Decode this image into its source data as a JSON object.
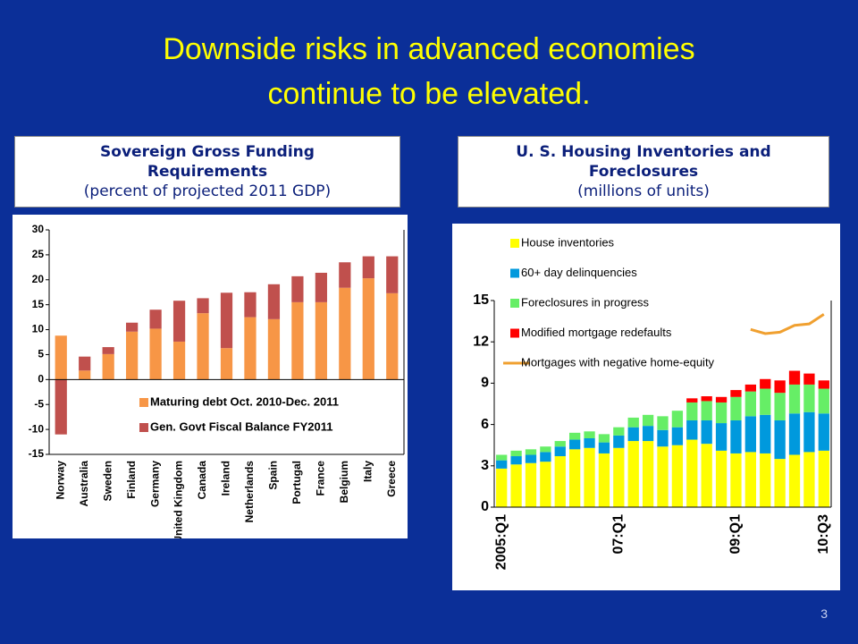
{
  "slide": {
    "title": "Downside risks in advanced economies continue to be elevated.",
    "page_number": "3"
  },
  "chart_data": [
    {
      "type": "bar",
      "stacked": true,
      "title": "Sovereign Gross Funding Requirements",
      "subtitle": "(percent of projected 2011 GDP)",
      "categories": [
        "Norway",
        "Australia",
        "Sweden",
        "Finland",
        "Germany",
        "United Kingdom",
        "Canada",
        "Ireland",
        "Netherlands",
        "Spain",
        "Portugal",
        "France",
        "Belgium",
        "Italy",
        "Greece"
      ],
      "series": [
        {
          "name": "Maturing debt Oct. 2010-Dec. 2011",
          "color": "#f79646",
          "values": [
            8.8,
            1.8,
            5.1,
            9.6,
            10.2,
            7.6,
            13.3,
            6.3,
            12.5,
            12.1,
            15.5,
            15.5,
            18.4,
            20.3,
            17.3
          ]
        },
        {
          "name": "Gen. Govt Fiscal Balance FY2011",
          "color": "#c0504d",
          "values": [
            -11,
            2.8,
            1.4,
            1.8,
            3.8,
            8.2,
            3.0,
            11.1,
            5.0,
            7.0,
            5.2,
            5.9,
            5.1,
            4.4,
            7.4
          ]
        }
      ],
      "ylim": [
        -15,
        30
      ],
      "yticks": [
        -15,
        -10,
        -5,
        0,
        5,
        10,
        15,
        20,
        25,
        30
      ],
      "grid": false,
      "legend": "lower right"
    },
    {
      "type": "bar",
      "stacked": true,
      "title": "U. S. Housing Inventories and Foreclosures",
      "subtitle": "(millions of units)",
      "categories": [
        "2005:Q1",
        null,
        null,
        null,
        null,
        null,
        null,
        null,
        "07:Q1",
        null,
        null,
        null,
        null,
        null,
        null,
        null,
        "09:Q1",
        null,
        null,
        null,
        null,
        null,
        "10:Q3"
      ],
      "series": [
        {
          "name": "House inventories",
          "color": "#ffff00",
          "values": [
            2.8,
            3.1,
            3.2,
            3.3,
            3.7,
            4.2,
            4.3,
            3.9,
            4.3,
            4.8,
            4.8,
            4.4,
            4.5,
            4.9,
            4.6,
            4.1,
            3.9,
            4.0,
            3.9,
            3.5,
            3.8,
            4.0,
            4.1
          ]
        },
        {
          "name": "60+ day delinquencies",
          "color": "#0099dd",
          "values": [
            0.6,
            0.6,
            0.6,
            0.7,
            0.7,
            0.7,
            0.7,
            0.8,
            0.9,
            1.0,
            1.1,
            1.2,
            1.3,
            1.4,
            1.7,
            2.0,
            2.4,
            2.6,
            2.8,
            2.8,
            3.0,
            2.9,
            2.7
          ]
        },
        {
          "name": "Foreclosures in progress",
          "color": "#66ee66",
          "values": [
            0.4,
            0.4,
            0.4,
            0.4,
            0.4,
            0.5,
            0.5,
            0.6,
            0.6,
            0.7,
            0.8,
            1.0,
            1.2,
            1.3,
            1.4,
            1.5,
            1.7,
            1.8,
            1.9,
            2.0,
            2.1,
            2.0,
            1.8
          ]
        },
        {
          "name": "Modified mortgage redefaults",
          "color": "#ff0000",
          "values": [
            0,
            0,
            0,
            0,
            0,
            0,
            0,
            0,
            0,
            0,
            0,
            0,
            0,
            0.3,
            0.35,
            0.4,
            0.5,
            0.5,
            0.7,
            0.9,
            1.0,
            0.8,
            0.6
          ]
        },
        {
          "name": "Mortgages with negative home-equity",
          "color": "#f0a030",
          "type": "line",
          "values": [
            null,
            null,
            null,
            null,
            null,
            null,
            null,
            null,
            null,
            null,
            null,
            null,
            null,
            null,
            null,
            null,
            null,
            12.9,
            12.6,
            12.7,
            13.2,
            13.3,
            14.0
          ]
        }
      ],
      "ylim": [
        0,
        15
      ],
      "yticks": [
        0,
        3,
        6,
        9,
        12,
        15
      ],
      "grid": false,
      "legend": "upper left"
    }
  ]
}
